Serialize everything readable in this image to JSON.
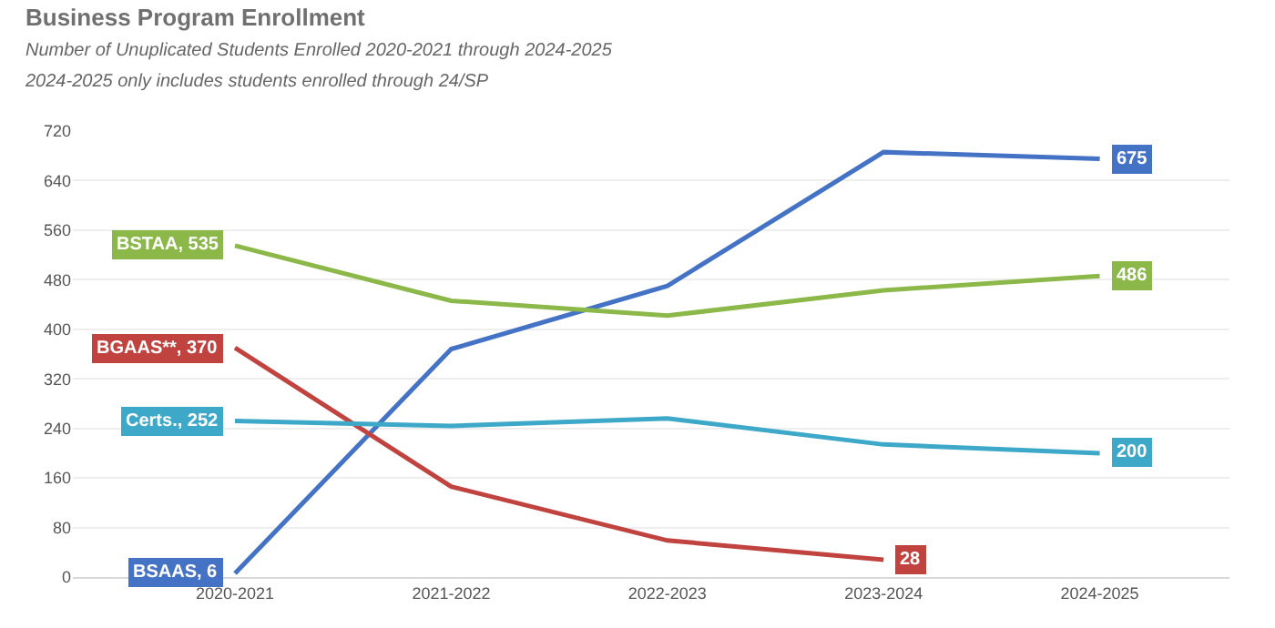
{
  "chart_data": {
    "type": "line",
    "title": "Business Program Enrollment",
    "subtitle": "Number of Unuplicated Students Enrolled 2020-2021 through 2024-2025\n2024-2025 only includes students enrolled through 24/SP",
    "categories": [
      "2020-2021",
      "2021-2022",
      "2022-2023",
      "2023-2024",
      "2024-2025"
    ],
    "series": [
      {
        "color": "#4472c4",
        "values": [
          6,
          368,
          470,
          686,
          675
        ],
        "value_labels": [
          "BSAAS, 6",
          null,
          null,
          null,
          "675"
        ]
      },
      {
        "color": "#8cb84a",
        "values": [
          535,
          446,
          422,
          463,
          486
        ],
        "value_labels": [
          "BSTAA, 535",
          null,
          null,
          null,
          "486"
        ]
      },
      {
        "color": "#c0433f",
        "values": [
          370,
          146,
          59,
          28,
          null
        ],
        "value_labels": [
          "BGAAS**, 370",
          null,
          null,
          "28",
          null
        ]
      },
      {
        "color": "#3ea8c8",
        "values": [
          252,
          244,
          256,
          214,
          200
        ],
        "value_labels": [
          "Certs., 252",
          null,
          null,
          null,
          "200"
        ]
      }
    ],
    "ylim": [
      0,
      720
    ],
    "yticks": [
      0,
      80,
      160,
      240,
      320,
      400,
      480,
      560,
      640,
      720
    ],
    "grid": "y",
    "legend": false,
    "marker": "none",
    "line_style": "solid"
  }
}
